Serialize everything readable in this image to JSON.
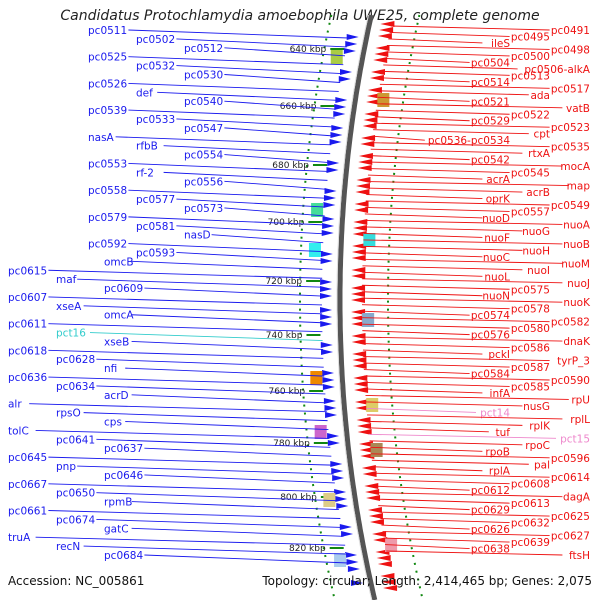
{
  "title": "Candidatus Protochlamydia amoebophila UWE25, complete genome",
  "accession": "Accession: NC_005861",
  "topology": "Topology: circular; Length: 2,414,465 bp; Genes: 2,075",
  "colors": {
    "forward": "#1a1aee",
    "reverse": "#ee1111",
    "rna_blue": "#33cccc",
    "rna_pink": "#ee88cc",
    "backbone": "#888888",
    "tick": "#118811"
  },
  "ticks": [
    "640 kbp",
    "660 kbp",
    "680 kbp",
    "700 kbp",
    "720 kbp",
    "740 kbp",
    "760 kbp",
    "780 kbp",
    "800 kbp",
    "820 kbp"
  ],
  "left_labels": [
    "pc0511",
    "pc0502",
    "pc0512",
    "pc0525",
    "pc0532",
    "pc0530",
    "pc0526",
    "def",
    "pc0540",
    "pc0539",
    "pc0533",
    "pc0547",
    "nasA",
    "rfbB",
    "pc0554",
    "pc0553",
    "rf-2",
    "pc0556",
    "pc0558",
    "pc0577",
    "pc0573",
    "pc0579",
    "pc0581",
    "nasD",
    "pc0592",
    "pc0593",
    "omcB",
    "pc0615",
    "maf",
    "pc0609",
    "pc0607",
    "xseA",
    "omcA",
    "pc0611",
    "pct16",
    "xseB",
    "pc0618",
    "pc0628",
    "nfi",
    "pc0636",
    "pc0634",
    "acrD",
    "alr",
    "rpsO",
    "cps",
    "tolC",
    "pc0641",
    "pc0637",
    "pc0645",
    "pnp",
    "pc0646",
    "pc0667",
    "pc0650",
    "rpmB",
    "pc0661",
    "pc0674",
    "gatC",
    "truA",
    "recN",
    "pc0684"
  ],
  "right_labels": [
    "pc0491",
    "pc0495",
    "ileS",
    "pc0498",
    "pc0500",
    "pc0504",
    "pc0506-alkA",
    "pc0513",
    "pc0514",
    "pc0517",
    "ada",
    "pc0521",
    "vatB",
    "pc0522",
    "pc0529",
    "pc0523",
    "cpt",
    "pc0536-pc0534",
    "pc0535",
    "rtxA",
    "pc0542",
    "mocA",
    "pc0545",
    "acrA",
    "map",
    "acrB",
    "oprK",
    "pc0549",
    "pc0557",
    "nuoD",
    "nuoA",
    "nuoG",
    "nuoF",
    "nuoB",
    "nuoH",
    "nuoC",
    "nuoM",
    "nuoI",
    "nuoL",
    "nuoJ",
    "pc0575",
    "nuoN",
    "nuoK",
    "pc0578",
    "pc0574",
    "pc0582",
    "pc0580",
    "pc0576",
    "dnaK",
    "pc0586",
    "pckI",
    "tyrP_3",
    "pc0587",
    "pc0584",
    "pc0590",
    "pc0585",
    "infA",
    "rpU",
    "nusG",
    "pct14",
    "rplL",
    "rplK",
    "tuf",
    "pct15",
    "rpoC",
    "rpoB",
    "pc0596",
    "pal",
    "rplA",
    "pc0614",
    "pc0608",
    "pc0612",
    "dagA",
    "pc0613",
    "pc0629",
    "pc0625",
    "pc0632",
    "pc0626",
    "pc0627",
    "pc0639",
    "pc0638",
    "ftsH"
  ]
}
